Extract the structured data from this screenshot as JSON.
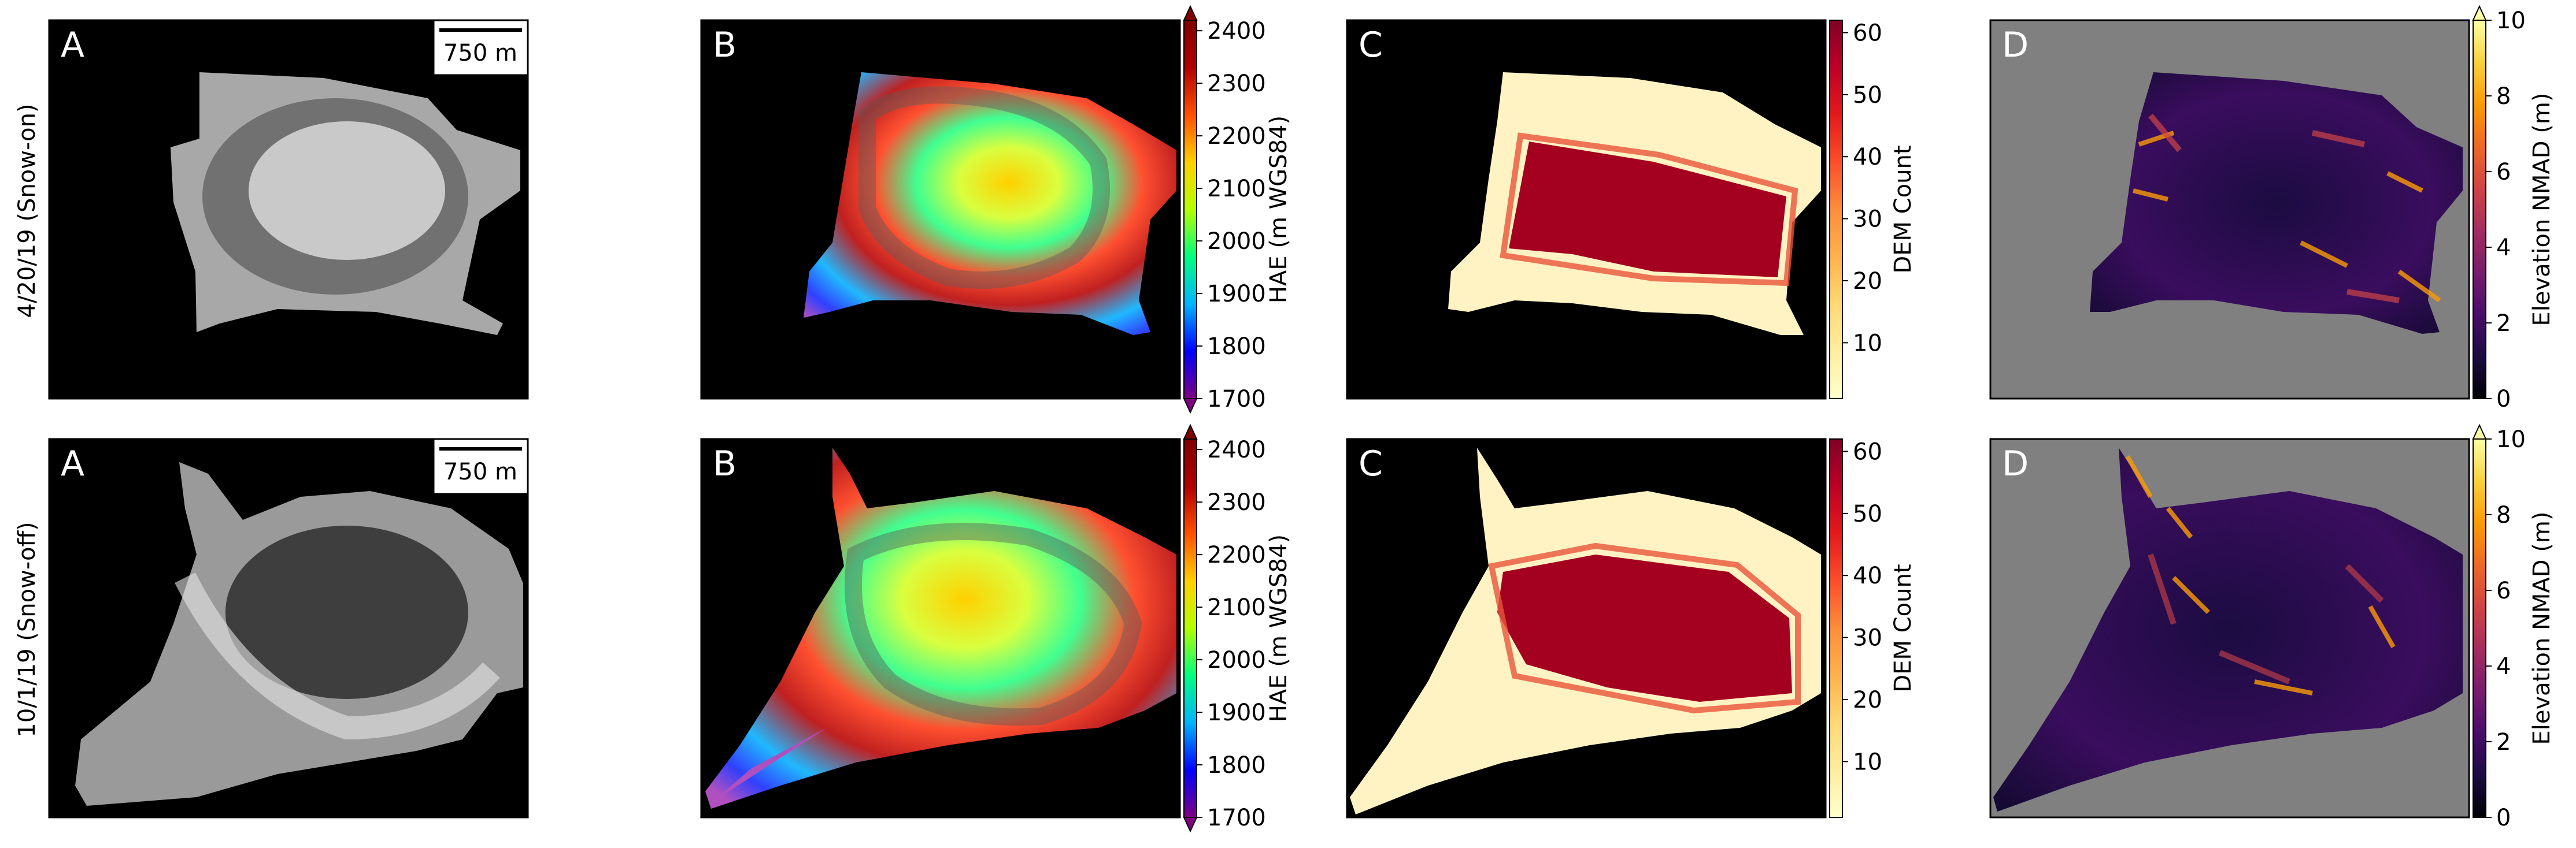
{
  "chart_data": {
    "type": "heatmap",
    "row_labels": [
      "4/20/19 (Snow-on)",
      "10/1/19 (Snow-off)"
    ],
    "columns": [
      {
        "letter": "A",
        "content": "orthoimage",
        "scalebar": "750 m",
        "background": "#000000"
      },
      {
        "letter": "B",
        "content": "hillshaded DEM",
        "background": "#000000",
        "colorbar": {
          "label": "HAE (m WGS84)",
          "colormap": "jet",
          "range": [
            1700,
            2420
          ],
          "ticks": [
            1700,
            1800,
            1900,
            2000,
            2100,
            2200,
            2300,
            2400
          ],
          "extend": "both"
        }
      },
      {
        "letter": "C",
        "content": "DEM count",
        "background": "#000000",
        "colorbar": {
          "label": "DEM Count",
          "colormap": "YlOrRd",
          "range": [
            1,
            62
          ],
          "ticks": [
            10,
            20,
            30,
            40,
            50,
            60
          ],
          "extend": "none"
        }
      },
      {
        "letter": "D",
        "content": "elevation NMAD",
        "background": "#808080",
        "colorbar": {
          "label": "Elevation NMAD (m)",
          "colormap": "inferno",
          "range": [
            0,
            10
          ],
          "ticks": [
            0,
            2,
            4,
            6,
            8,
            10
          ],
          "extend": "max"
        }
      }
    ]
  },
  "colors": {
    "jet": [
      "#7f0080",
      "#0000ff",
      "#00b4ff",
      "#00ff80",
      "#b4ff00",
      "#ffd000",
      "#ff5000",
      "#b00000",
      "#800000"
    ],
    "ylorrd": [
      "#ffffcc",
      "#ffeda0",
      "#fed976",
      "#feb24c",
      "#fd8d3c",
      "#fc4e2a",
      "#e31a1c",
      "#bd0026",
      "#800026"
    ],
    "inferno": [
      "#000004",
      "#1b0c41",
      "#4a0c6b",
      "#781c6d",
      "#a52c60",
      "#cf4446",
      "#ed6925",
      "#fb9b06",
      "#f7d13d",
      "#fcffa4"
    ]
  }
}
